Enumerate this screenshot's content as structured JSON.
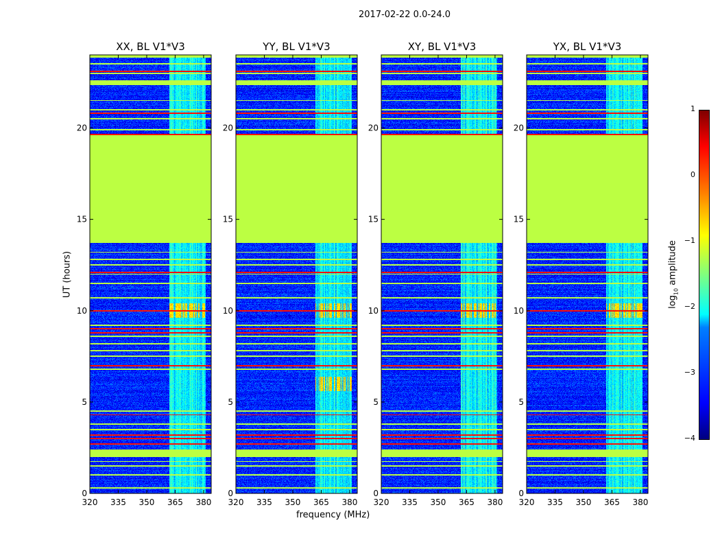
{
  "suptitle": "2017-02-22 0.0-24.0",
  "chart_data": {
    "type": "heatmap",
    "xlabel": "frequency (MHz)",
    "ylabel": "UT (hours)",
    "xlim": [
      320,
      384
    ],
    "ylim": [
      0,
      24
    ],
    "xticks": [
      "320",
      "335",
      "350",
      "365",
      "380"
    ],
    "yticks": [
      "0",
      "5",
      "10",
      "15",
      "20"
    ],
    "panels": [
      {
        "title": "XX, BL V1*V3",
        "pol": "XX",
        "rfi_peak": [
          10.0
        ]
      },
      {
        "title": "YY, BL V1*V3",
        "pol": "YY",
        "rfi_peak": [
          10.0,
          6.0
        ]
      },
      {
        "title": "XY, BL V1*V3",
        "pol": "XY",
        "rfi_peak": [
          10.0
        ]
      },
      {
        "title": "YX, BL V1*V3",
        "pol": "YX",
        "rfi_peak": [
          10.0
        ]
      }
    ],
    "background_log_amplitude": -3.2,
    "rfi_band_mhz": [
      362,
      381
    ],
    "rfi_band_log_amplitude": -2.0,
    "flagged_gap_hours": [
      13.7,
      19.6
    ],
    "flagged_band_hours": [
      [
        2.0,
        2.4
      ],
      [
        22.35,
        22.6
      ],
      [
        23.85,
        24.0
      ]
    ],
    "flagged_rows_hours": [
      0.3,
      1.0,
      1.5,
      1.75,
      3.5,
      3.8,
      4.5,
      6.8,
      7.5,
      7.8,
      8.2,
      8.6,
      9.2,
      10.7,
      11.5,
      12.0,
      12.5,
      12.8,
      13.2,
      19.9,
      20.5,
      21.0,
      21.5,
      23.0,
      23.5
    ],
    "red_rows_hours": [
      2.7,
      3.0,
      3.2,
      4.3,
      7.0,
      8.8,
      9.0,
      10.0,
      12.1,
      19.65,
      20.8,
      23.1
    ],
    "colorbar": {
      "label": "log10 amplitude",
      "label_main": "log",
      "label_sub": "10",
      "label_rest": " amplitude",
      "range": [
        -4,
        1
      ],
      "ticks": [
        "1",
        "0",
        "−1",
        "−2",
        "−3",
        "−4"
      ],
      "colormap": "jet"
    }
  }
}
